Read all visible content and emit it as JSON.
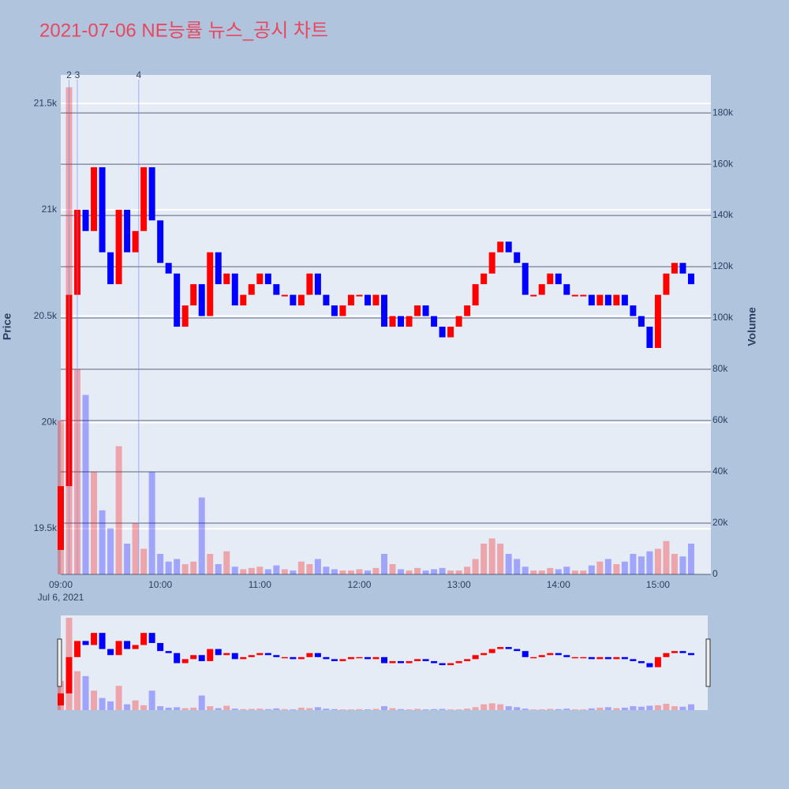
{
  "chart_data": {
    "type": "candlestick",
    "title": "2021-07-06 NE능률 뉴스_공시 차트",
    "y_label": "Price",
    "y2_label": "Volume",
    "x_sublabel": "Jul 6, 2021",
    "up_color": "#ff0000",
    "down_color": "#0000ff",
    "x": [
      "09:00",
      "09:05",
      "09:10",
      "09:15",
      "09:20",
      "09:25",
      "09:30",
      "09:35",
      "09:40",
      "09:45",
      "09:50",
      "09:55",
      "10:00",
      "10:05",
      "10:10",
      "10:15",
      "10:20",
      "10:25",
      "10:30",
      "10:35",
      "10:40",
      "10:45",
      "10:50",
      "10:55",
      "11:00",
      "11:05",
      "11:10",
      "11:15",
      "11:20",
      "11:25",
      "11:30",
      "11:35",
      "11:40",
      "11:45",
      "11:50",
      "11:55",
      "12:00",
      "12:05",
      "12:10",
      "12:15",
      "12:20",
      "12:25",
      "12:30",
      "12:35",
      "12:40",
      "12:45",
      "12:50",
      "12:55",
      "13:00",
      "13:05",
      "13:10",
      "13:15",
      "13:20",
      "13:25",
      "13:30",
      "13:35",
      "13:40",
      "13:45",
      "13:50",
      "13:55",
      "14:00",
      "14:05",
      "14:10",
      "14:15",
      "14:20",
      "14:25",
      "14:30",
      "14:35",
      "14:40",
      "14:45",
      "14:50",
      "14:55",
      "15:00",
      "15:05",
      "15:10",
      "15:15",
      "15:20"
    ],
    "open": [
      19400,
      19700,
      20600,
      21000,
      20900,
      21200,
      20800,
      20650,
      21000,
      20800,
      20900,
      21200,
      20950,
      20750,
      20700,
      20450,
      20550,
      20650,
      20500,
      20800,
      20650,
      20700,
      20550,
      20600,
      20650,
      20700,
      20650,
      20600,
      20600,
      20550,
      20600,
      20700,
      20600,
      20550,
      20500,
      20550,
      20600,
      20600,
      20550,
      20600,
      20450,
      20500,
      20450,
      20500,
      20550,
      20500,
      20450,
      20400,
      20450,
      20500,
      20550,
      20650,
      20700,
      20800,
      20850,
      20800,
      20750,
      20600,
      20600,
      20650,
      20700,
      20650,
      20600,
      20600,
      20600,
      20550,
      20600,
      20550,
      20600,
      20550,
      20500,
      20450,
      20350,
      20600,
      20700,
      20750,
      20700
    ],
    "close": [
      19700,
      20600,
      21000,
      20900,
      21200,
      20800,
      20650,
      21000,
      20800,
      20900,
      21200,
      20950,
      20750,
      20700,
      20450,
      20550,
      20650,
      20500,
      20800,
      20650,
      20700,
      20550,
      20600,
      20650,
      20700,
      20650,
      20600,
      20600,
      20550,
      20600,
      20700,
      20600,
      20550,
      20500,
      20550,
      20600,
      20600,
      20550,
      20600,
      20450,
      20500,
      20450,
      20500,
      20550,
      20500,
      20450,
      20400,
      20450,
      20500,
      20550,
      20650,
      20700,
      20800,
      20850,
      20800,
      20750,
      20600,
      20600,
      20650,
      20700,
      20650,
      20600,
      20600,
      20600,
      20550,
      20600,
      20550,
      20600,
      20550,
      20500,
      20450,
      20350,
      20600,
      20700,
      20750,
      20700,
      20650
    ],
    "volume": [
      60000,
      190000,
      80000,
      70000,
      40000,
      25000,
      18000,
      50000,
      12000,
      20000,
      10000,
      40000,
      8000,
      5000,
      6000,
      4000,
      5000,
      30000,
      8000,
      4000,
      9000,
      3000,
      2000,
      2500,
      3000,
      2000,
      3500,
      2000,
      1500,
      5000,
      4000,
      6000,
      3000,
      2000,
      1500,
      1500,
      2000,
      1500,
      2500,
      8000,
      4000,
      2000,
      1500,
      2500,
      1500,
      2000,
      2500,
      1500,
      1500,
      3000,
      6000,
      12000,
      14000,
      12000,
      8000,
      6000,
      3000,
      1500,
      1500,
      2500,
      2000,
      3000,
      1500,
      1500,
      3500,
      5000,
      6000,
      4000,
      5000,
      8000,
      7000,
      9000,
      10000,
      13000,
      8000,
      7000,
      12000
    ],
    "markers": [
      {
        "label": "2",
        "x": "09:05"
      },
      {
        "label": "3",
        "x": "09:10"
      },
      {
        "label": "4",
        "x": "09:47"
      }
    ],
    "xlim": [
      "09:00",
      "15:30"
    ],
    "xticks": [
      "09:00",
      "10:00",
      "11:00",
      "12:00",
      "13:00",
      "14:00",
      "15:00"
    ],
    "ylim": [
      19285,
      21634
    ],
    "yticks": [
      {
        "value": 19500,
        "label": "19.5k"
      },
      {
        "value": 20000,
        "label": "20k"
      },
      {
        "value": 20500,
        "label": "20.5k"
      },
      {
        "value": 21000,
        "label": "21k"
      },
      {
        "value": 21500,
        "label": "21.5k"
      }
    ],
    "y2lim": [
      0,
      194800
    ],
    "y2ticks": [
      0,
      {
        "value": 20000,
        "label": "20k"
      },
      {
        "value": 40000,
        "label": "40k"
      },
      {
        "value": 60000,
        "label": "60k"
      },
      {
        "value": 80000,
        "label": "80k"
      },
      {
        "value": 100000,
        "label": "100k"
      },
      {
        "value": 120000,
        "label": "120k"
      },
      {
        "value": 140000,
        "label": "140k"
      },
      {
        "value": 160000,
        "label": "160k"
      },
      {
        "value": 180000,
        "label": "180k"
      }
    ]
  }
}
